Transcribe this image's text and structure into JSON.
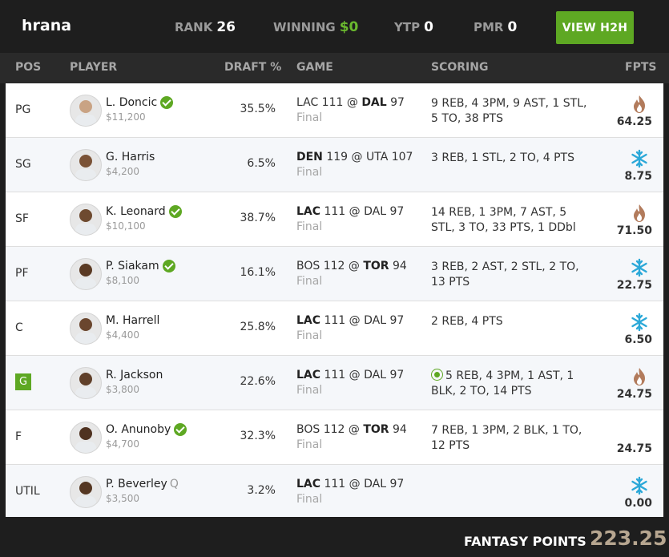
{
  "header": {
    "username": "hrana",
    "rank_label": "RANK",
    "rank_value": "26",
    "winning_label": "WINNING",
    "winning_value": "$0",
    "ytp_label": "YTP",
    "ytp_value": "0",
    "pmr_label": "PMR",
    "pmr_value": "0",
    "h2h_button": "VIEW H2H"
  },
  "columns": {
    "pos": "POS",
    "player": "PLAYER",
    "draft": "DRAFT %",
    "game": "GAME",
    "scoring": "SCORING",
    "fpts": "FPTS"
  },
  "rows": [
    {
      "pos": "PG",
      "name": "L. Doncic",
      "salary": "$11,200",
      "draft": "35.5%",
      "g1": "LAC 111 @ ",
      "g2": "DAL",
      "g3": " 97",
      "status": "Final",
      "scoring": "9 REB, 4 3PM, 9 AST, 1 STL, 5 TO, 38 PTS",
      "fpts": "64.25",
      "icon": "flame-icon"
    },
    {
      "pos": "SG",
      "name": "G. Harris",
      "salary": "$4,200",
      "draft": "6.5%",
      "g1": "",
      "g2": "DEN",
      "g3": " 119 @ UTA 107",
      "status": "Final",
      "scoring": "3 REB, 1 STL, 2 TO, 4 PTS",
      "fpts": "8.75",
      "icon": "snowflake-icon"
    },
    {
      "pos": "SF",
      "name": "K. Leonard",
      "salary": "$10,100",
      "draft": "38.7%",
      "g1": "",
      "g2": "LAC",
      "g3": " 111 @ DAL 97",
      "status": "Final",
      "scoring": "14 REB, 1 3PM, 7 AST, 5 STL, 3 TO, 33 PTS, 1 DDbl",
      "fpts": "71.50",
      "icon": "flame-icon"
    },
    {
      "pos": "PF",
      "name": "P. Siakam",
      "salary": "$8,100",
      "draft": "16.1%",
      "g1": "BOS 112 @ ",
      "g2": "TOR",
      "g3": " 94",
      "status": "Final",
      "scoring": "3 REB, 2 AST, 2 STL, 2 TO, 13 PTS",
      "fpts": "22.75",
      "icon": "snowflake-icon"
    },
    {
      "pos": "C",
      "name": "M. Harrell",
      "salary": "$4,400",
      "draft": "25.8%",
      "g1": "",
      "g2": "LAC",
      "g3": " 111 @ DAL 97",
      "status": "Final",
      "scoring": "2 REB, 4 PTS",
      "fpts": "6.50",
      "icon": "snowflake-icon"
    },
    {
      "pos": "G",
      "name": "R. Jackson",
      "salary": "$3,800",
      "draft": "22.6%",
      "g1": "",
      "g2": "LAC",
      "g3": " 111 @ DAL 97",
      "status": "Final",
      "scoring": "5 REB, 4 3PM, 1 AST, 1 BLK, 2 TO, 14 PTS",
      "fpts": "24.75",
      "icon": "flame-icon"
    },
    {
      "pos": "F",
      "name": "O. Anunoby",
      "salary": "$4,700",
      "draft": "32.3%",
      "g1": "BOS 112 @ ",
      "g2": "TOR",
      "g3": " 94",
      "status": "Final",
      "scoring": "7 REB, 1 3PM, 2 BLK, 1 TO, 12 PTS",
      "fpts": "24.75",
      "icon": ""
    },
    {
      "pos": "UTIL",
      "name": "P. Beverley",
      "salary": "$3,500",
      "draft": "3.2%",
      "g1": "",
      "g2": "LAC",
      "g3": " 111 @ DAL 97",
      "status": "Final",
      "scoring": "",
      "fpts": "0.00",
      "icon": "snowflake-icon",
      "tag": "Q"
    }
  ],
  "footer": {
    "label": "FANTASY POINTS",
    "value": "223.25"
  },
  "colors": {
    "accent_green": "#5ea823",
    "flame": "#b27b5c",
    "snowflake": "#2ba8d8",
    "total": "#b7a690"
  }
}
